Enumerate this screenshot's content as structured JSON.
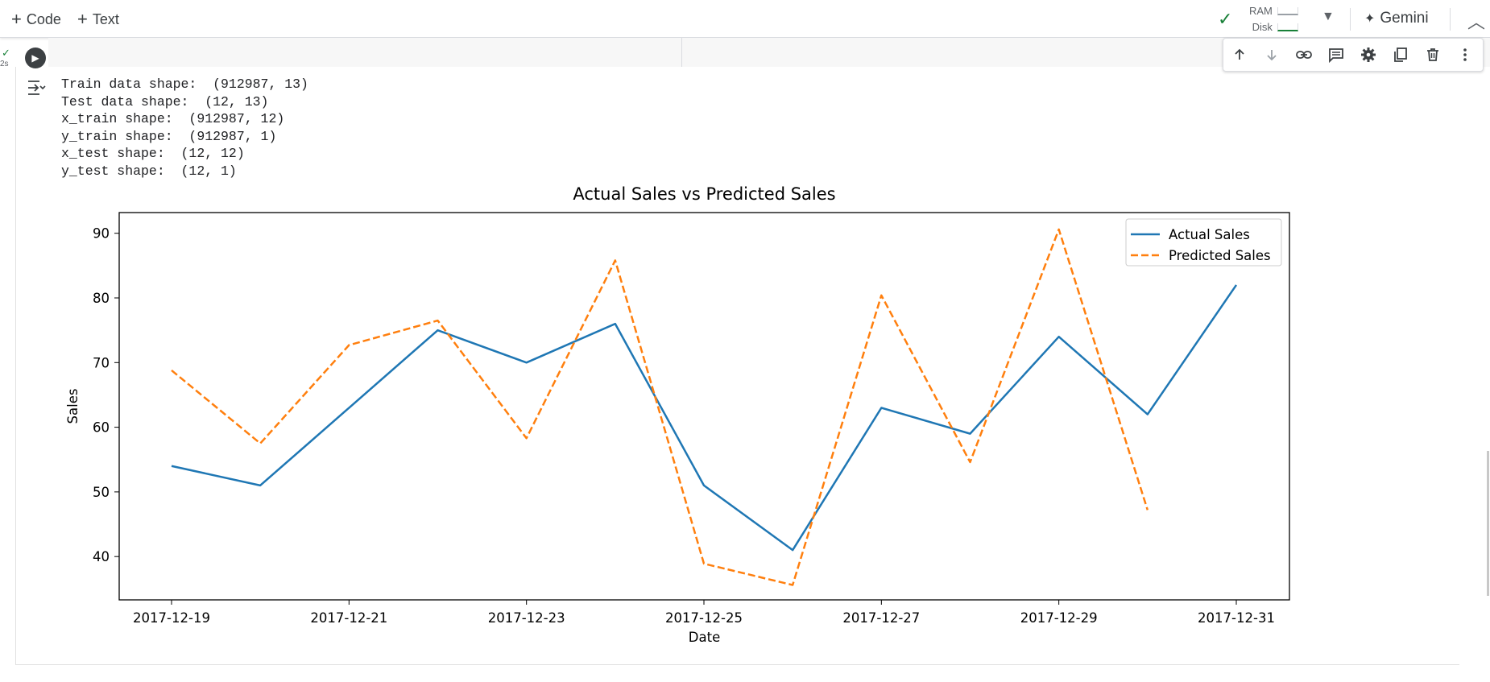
{
  "toolbar": {
    "add_code_label": "Code",
    "add_text_label": "Text",
    "ram_label": "RAM",
    "disk_label": "Disk",
    "gemini_label": "Gemini",
    "icons": {
      "add": "plus-icon",
      "connected": "check-icon",
      "resources_dropdown": "caret-down-icon",
      "gemini": "sparkle-icon",
      "collapse": "chevron-up-icon"
    }
  },
  "cell": {
    "exec_time": "2s",
    "run_icon": "play-icon",
    "toolbar_icons": [
      "arrow-up-icon",
      "arrow-down-icon",
      "link-icon",
      "comment-icon",
      "gear-icon",
      "mirror-cell-icon",
      "trash-icon",
      "more-vert-icon"
    ]
  },
  "output": {
    "icon": "output-menu-icon",
    "lines": [
      "Train data shape:  (912987, 13)",
      "Test data shape:  (12, 13)",
      "x_train shape:  (912987, 12)",
      "y_train shape:  (912987, 1)",
      "x_test shape:  (12, 12)",
      "y_test shape:  (12, 1)"
    ]
  },
  "chart_data": {
    "type": "line",
    "title": "Actual Sales vs Predicted Sales",
    "xlabel": "Date",
    "ylabel": "Sales",
    "x": [
      "2017-12-19",
      "2017-12-20",
      "2017-12-21",
      "2017-12-22",
      "2017-12-23",
      "2017-12-24",
      "2017-12-25",
      "2017-12-26",
      "2017-12-27",
      "2017-12-28",
      "2017-12-29",
      "2017-12-30",
      "2017-12-31"
    ],
    "x_tick_labels": [
      "2017-12-19",
      "2017-12-21",
      "2017-12-23",
      "2017-12-25",
      "2017-12-27",
      "2017-12-29",
      "2017-12-31"
    ],
    "y_ticks": [
      40,
      50,
      60,
      70,
      80,
      90
    ],
    "ylim": [
      33.3,
      93.2
    ],
    "grid": false,
    "legend_position": "top-right",
    "series": [
      {
        "name": "Actual Sales",
        "style": "solid",
        "color": "#1f77b4",
        "values": [
          54,
          51,
          63,
          75,
          70,
          76,
          51,
          41,
          63,
          59,
          74,
          62,
          82
        ]
      },
      {
        "name": "Predicted Sales",
        "style": "dashed",
        "color": "#ff7f0e",
        "values": [
          68.8,
          57.5,
          72.7,
          76.5,
          58.3,
          85.8,
          38.9,
          35.6,
          80.4,
          54.6,
          90.6,
          47.2,
          null
        ]
      }
    ]
  }
}
